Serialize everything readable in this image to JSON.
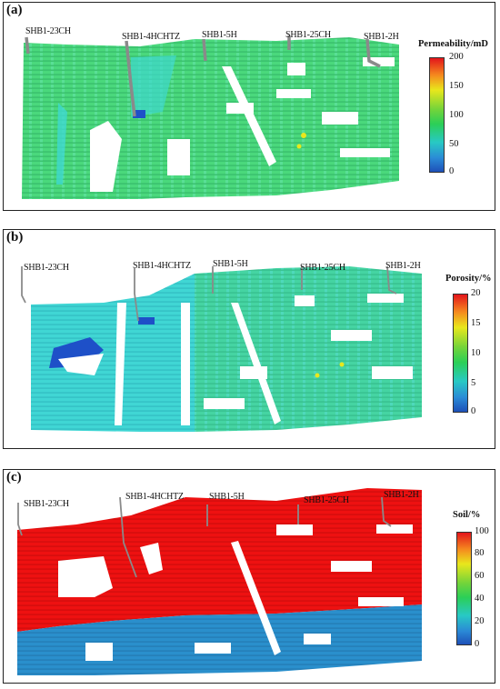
{
  "panels": [
    {
      "id": "a",
      "label": "(a)",
      "property": "Permeability/mD",
      "ticks": [
        "200",
        "150",
        "100",
        "50",
        "0"
      ],
      "wells": [
        "SHB1-23CH",
        "SHB1-4HCHTZ",
        "SHB1-5H",
        "SHB1-25CH",
        "SHB1-2H"
      ]
    },
    {
      "id": "b",
      "label": "(b)",
      "property": "Porosity/%",
      "ticks": [
        "20",
        "15",
        "10",
        "5",
        "0"
      ],
      "wells": [
        "SHB1-23CH",
        "SHB1-4HCHTZ",
        "SHB1-5H",
        "SHB1-25CH",
        "SHB1-2H"
      ]
    },
    {
      "id": "c",
      "label": "(c)",
      "property": "Soil/%",
      "ticks": [
        "100",
        "80",
        "60",
        "40",
        "20",
        "0"
      ],
      "wells": [
        "SHB1-23CH",
        "SHB1-4HCHTZ",
        "SHB1-5H",
        "SHB1-25CH",
        "SHB1-2H"
      ]
    }
  ],
  "colors": {
    "model_green": "#45d27a",
    "model_cyan": "#3fd8cf",
    "model_blue": "#1e50c8",
    "oil_red": "#ee1111",
    "water_blue": "#2a8fcc",
    "well_gray": "#8a8a8a"
  }
}
